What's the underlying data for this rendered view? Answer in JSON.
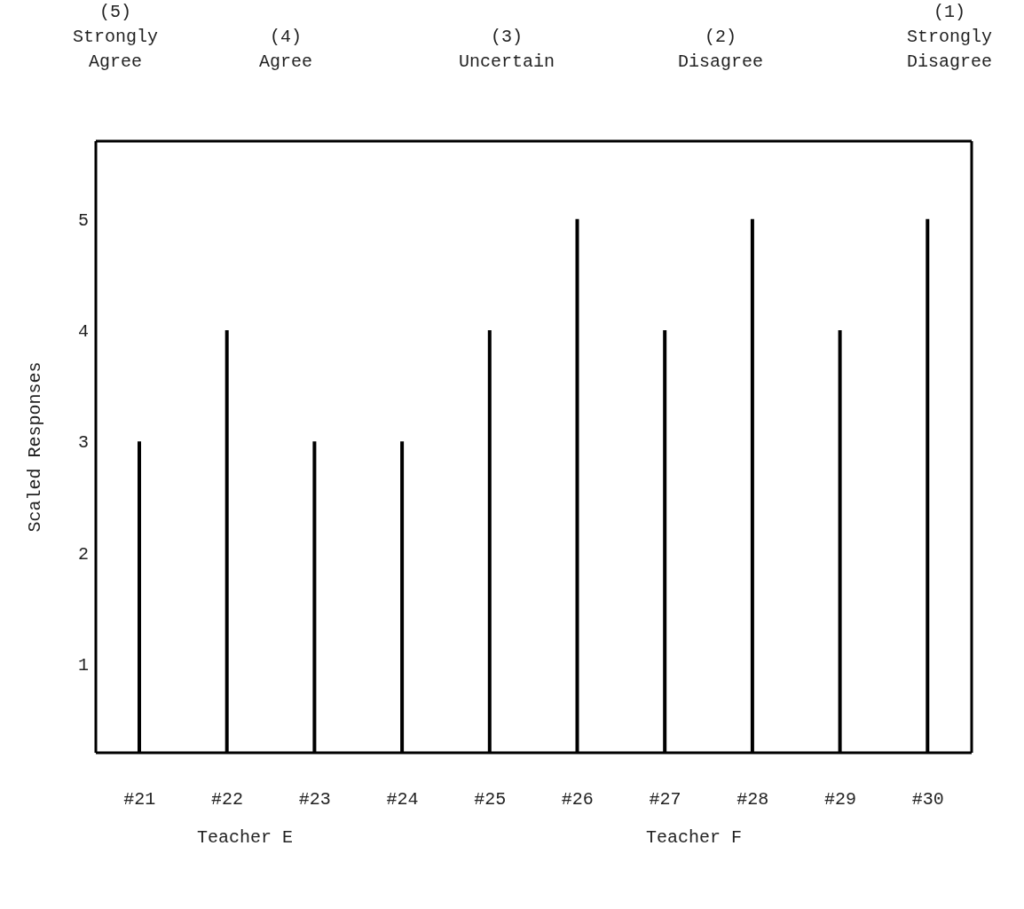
{
  "chart_data": {
    "type": "bar",
    "ylabel": "Scaled Responses",
    "categories": [
      "#21",
      "#22",
      "#23",
      "#24",
      "#25",
      "#26",
      "#27",
      "#28",
      "#29",
      "#30"
    ],
    "values": [
      3,
      4,
      3,
      3,
      4,
      5,
      4,
      5,
      4,
      5
    ],
    "color": "#000000",
    "ylim": [
      0.2,
      5.7
    ],
    "yticks": [
      1,
      2,
      3,
      4,
      5
    ],
    "grid": false,
    "legend": false,
    "annotations": [
      "(5)\nStrongly\nAgree",
      "(4)\nAgree",
      "(3)\nUncertain",
      "(2)\nDisagree",
      "(1)\nStrongly\nDisagree",
      "Teacher E",
      "Teacher F"
    ]
  }
}
